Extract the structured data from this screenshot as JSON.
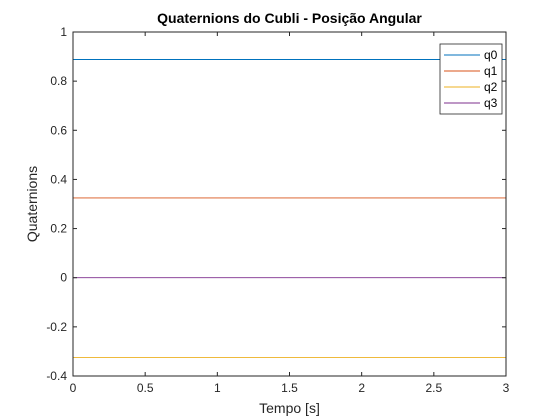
{
  "chart_data": {
    "type": "line",
    "title": "Quaternions do Cubli - Posição Angular",
    "xlabel": "Tempo [s]",
    "ylabel": "Quaternions",
    "xlim": [
      0,
      3
    ],
    "ylim": [
      -0.4,
      1
    ],
    "x_ticks": [
      0,
      0.5,
      1,
      1.5,
      2,
      2.5,
      3
    ],
    "x_tick_labels": [
      "0",
      "0.5",
      "1",
      "1.5",
      "2",
      "2.5",
      "3"
    ],
    "y_ticks": [
      -0.4,
      -0.2,
      0,
      0.2,
      0.4,
      0.6,
      0.8,
      1
    ],
    "y_tick_labels": [
      "-0.4",
      "-0.2",
      "0",
      "0.2",
      "0.4",
      "0.6",
      "0.8",
      "1"
    ],
    "grid": false,
    "legend_position": "top-right",
    "series": [
      {
        "name": "q0",
        "color": "#0072BD",
        "x": [
          0,
          3
        ],
        "values": [
          0.888,
          0.888
        ]
      },
      {
        "name": "q1",
        "color": "#D95319",
        "x": [
          0,
          3
        ],
        "values": [
          0.325,
          0.325
        ]
      },
      {
        "name": "q2",
        "color": "#EDB120",
        "x": [
          0,
          3
        ],
        "values": [
          -0.325,
          -0.325
        ]
      },
      {
        "name": "q3",
        "color": "#7E2F8E",
        "x": [
          0,
          3
        ],
        "values": [
          0,
          0
        ]
      }
    ]
  }
}
